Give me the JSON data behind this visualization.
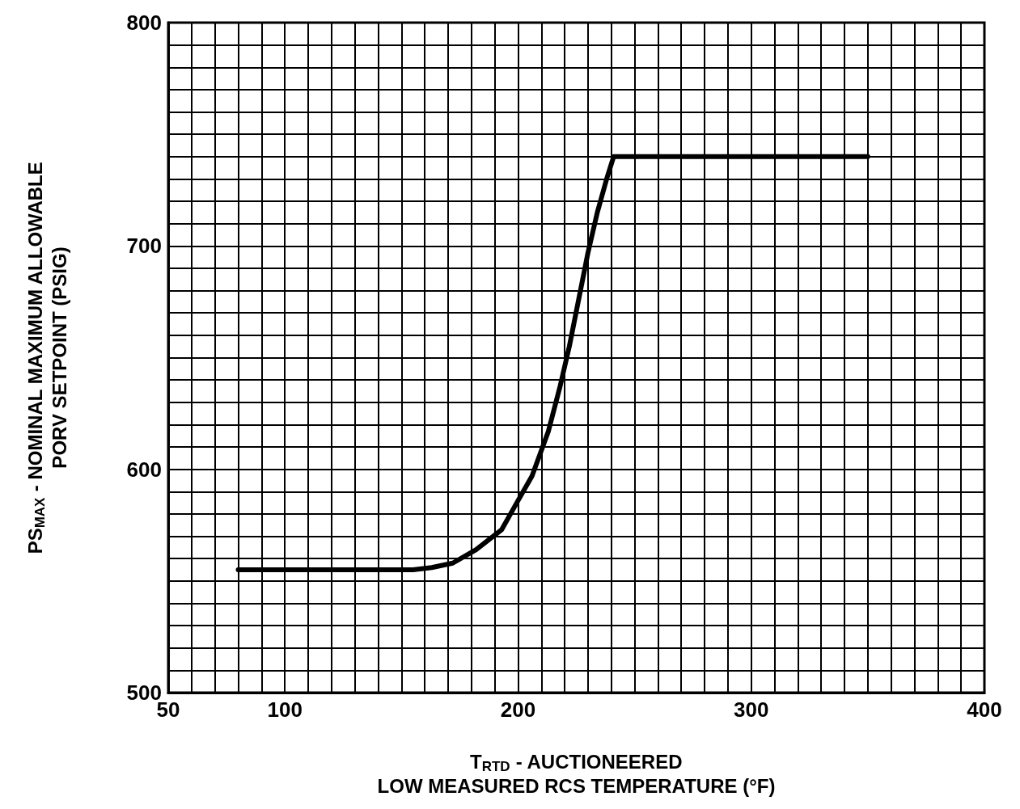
{
  "chart_data": {
    "type": "line",
    "xlabel": "T$_{RTD}$ - AUCTIONEERED\nLOW MEASURED RCS TEMPERATURE (°F)",
    "ylabel": "PS$_{MAX}$ - NOMINAL MAXIMUM ALLOWABLE\nPORV SETPOINT (PSIG)",
    "x": [
      80,
      155,
      163,
      172,
      182,
      193,
      200,
      206,
      213,
      218,
      222,
      226,
      230,
      234,
      238,
      241,
      350
    ],
    "series": [
      {
        "color": "#000000",
        "values": [
          555,
          555,
          556,
          558,
          564,
          573,
          586,
          597,
          617,
          637,
          655,
          676,
          697,
          715,
          730,
          740,
          740
        ]
      }
    ],
    "xlim": [
      50,
      400
    ],
    "xticks": [
      50,
      {
        "value": 60,
        "label": null
      },
      {
        "value": 70,
        "label": null
      },
      {
        "value": 80,
        "label": null
      },
      {
        "value": 90,
        "label": null
      },
      100,
      {
        "value": 110,
        "label": null
      },
      {
        "value": 120,
        "label": null
      },
      {
        "value": 130,
        "label": null
      },
      {
        "value": 140,
        "label": null
      },
      {
        "value": 150,
        "label": null
      },
      {
        "value": 160,
        "label": null
      },
      {
        "value": 170,
        "label": null
      },
      {
        "value": 180,
        "label": null
      },
      {
        "value": 190,
        "label": null
      },
      200,
      {
        "value": 210,
        "label": null
      },
      {
        "value": 220,
        "label": null
      },
      {
        "value": 230,
        "label": null
      },
      {
        "value": 240,
        "label": null
      },
      {
        "value": 250,
        "label": null
      },
      {
        "value": 260,
        "label": null
      },
      {
        "value": 270,
        "label": null
      },
      {
        "value": 280,
        "label": null
      },
      {
        "value": 290,
        "label": null
      },
      300,
      {
        "value": 310,
        "label": null
      },
      {
        "value": 320,
        "label": null
      },
      {
        "value": 330,
        "label": null
      },
      {
        "value": 340,
        "label": null
      },
      {
        "value": 350,
        "label": null
      },
      {
        "value": 360,
        "label": null
      },
      {
        "value": 370,
        "label": null
      },
      {
        "value": 380,
        "label": null
      },
      {
        "value": 390,
        "label": null
      },
      400
    ],
    "ylim": [
      500,
      800
    ],
    "yticks": [
      500,
      {
        "value": 510,
        "label": null
      },
      {
        "value": 520,
        "label": null
      },
      {
        "value": 530,
        "label": null
      },
      {
        "value": 540,
        "label": null
      },
      {
        "value": 550,
        "label": null
      },
      {
        "value": 560,
        "label": null
      },
      {
        "value": 570,
        "label": null
      },
      {
        "value": 580,
        "label": null
      },
      {
        "value": 590,
        "label": null
      },
      600,
      {
        "value": 610,
        "label": null
      },
      {
        "value": 620,
        "label": null
      },
      {
        "value": 630,
        "label": null
      },
      {
        "value": 640,
        "label": null
      },
      {
        "value": 650,
        "label": null
      },
      {
        "value": 660,
        "label": null
      },
      {
        "value": 670,
        "label": null
      },
      {
        "value": 680,
        "label": null
      },
      {
        "value": 690,
        "label": null
      },
      700,
      {
        "value": 710,
        "label": null
      },
      {
        "value": 720,
        "label": null
      },
      {
        "value": 730,
        "label": null
      },
      {
        "value": 740,
        "label": null
      },
      {
        "value": 750,
        "label": null
      },
      {
        "value": 760,
        "label": null
      },
      {
        "value": 770,
        "label": null
      },
      {
        "value": 780,
        "label": null
      },
      {
        "value": 790,
        "label": null
      },
      800
    ],
    "grid": true,
    "marker": "none",
    "line_style": "solid"
  }
}
